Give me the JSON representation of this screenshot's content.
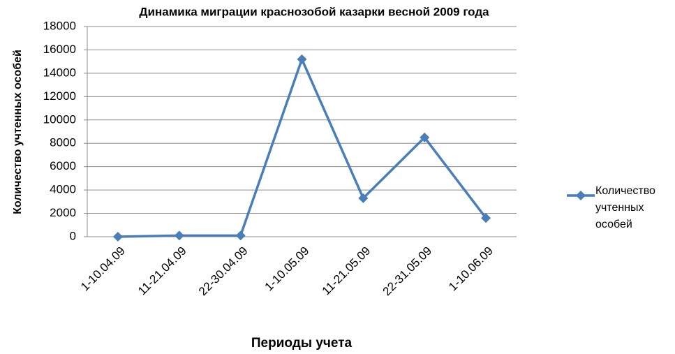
{
  "chart_data": {
    "type": "line",
    "title": "Динамика миграции краснозобой казарки весной 2009 года",
    "x_label": "Периоды учета",
    "y_label": "Количество учтенных особей",
    "categories": [
      "1-10.04.09",
      "11-21.04.09",
      "22-30.04.09",
      "1-10.05.09",
      "11-21.05.09",
      "22-31.05.09",
      "1-10.06.09"
    ],
    "series": [
      {
        "name": "Количество учтенных особей",
        "color": "#4a7ebb",
        "values": [
          0,
          100,
          100,
          15200,
          3300,
          8500,
          1600
        ]
      }
    ],
    "ylim": [
      0,
      18000
    ],
    "yticks": [
      0,
      2000,
      4000,
      6000,
      8000,
      10000,
      12000,
      14000,
      16000,
      18000
    ],
    "grid": true,
    "legend": "right"
  }
}
